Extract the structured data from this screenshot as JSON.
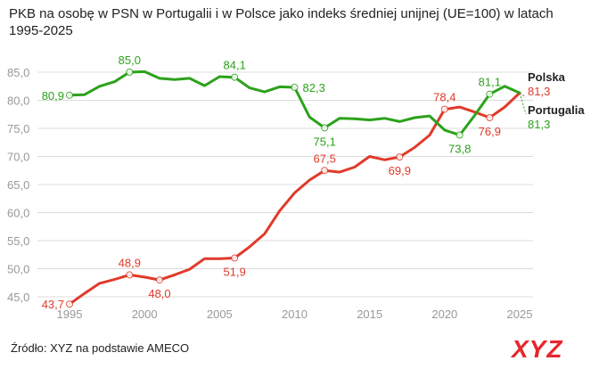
{
  "title": "PKB na osobę w PSN w Portugalii i w Polsce jako indeks średniej unijnej (UE=100) w latach 1995-2025",
  "source": "Źródło: XYZ na podstawie AMECO",
  "logo_text": "XYZ",
  "colors": {
    "polska": "#e03a2a",
    "portugalia": "#2ca21b",
    "grid": "#dcdcdc",
    "axis_text": "#999999",
    "logo": "#e8262c",
    "logo_dark": "#1b1f3a"
  },
  "chart_data": {
    "type": "line",
    "title": "PKB na osobę w PSN w Portugalii i w Polsce jako indeks średniej unijnej (UE=100) w latach 1995-2025",
    "xlabel": "",
    "ylabel": "",
    "xlim": [
      1995,
      2025
    ],
    "ylim": [
      45,
      85
    ],
    "x_ticks": [
      "1995",
      "2000",
      "2005",
      "2010",
      "2015",
      "2020",
      "2025"
    ],
    "y_ticks": [
      "45,0",
      "50,0",
      "55,0",
      "60,0",
      "65,0",
      "70,0",
      "75,0",
      "80,0",
      "85,0"
    ],
    "grid": true,
    "legend": "end-labels",
    "series": [
      {
        "key": "polska",
        "name": "Polska",
        "x": [
          1995,
          1996,
          1997,
          1998,
          1999,
          2000,
          2001,
          2002,
          2003,
          2004,
          2005,
          2006,
          2007,
          2008,
          2009,
          2010,
          2011,
          2012,
          2013,
          2014,
          2015,
          2016,
          2017,
          2018,
          2019,
          2020,
          2021,
          2022,
          2023,
          2024,
          2025
        ],
        "y": [
          43.7,
          45.6,
          47.4,
          48.1,
          48.9,
          48.5,
          48.0,
          48.9,
          49.9,
          51.8,
          51.8,
          51.9,
          53.9,
          56.2,
          60.3,
          63.5,
          65.8,
          67.5,
          67.2,
          68.1,
          70.0,
          69.4,
          69.9,
          71.6,
          73.8,
          78.4,
          78.8,
          77.9,
          76.9,
          78.8,
          81.3
        ]
      },
      {
        "key": "portugalia",
        "name": "Portugalia",
        "x": [
          1995,
          1996,
          1997,
          1998,
          1999,
          2000,
          2001,
          2002,
          2003,
          2004,
          2005,
          2006,
          2007,
          2008,
          2009,
          2010,
          2011,
          2012,
          2013,
          2014,
          2015,
          2016,
          2017,
          2018,
          2019,
          2020,
          2021,
          2022,
          2023,
          2024,
          2025
        ],
        "y": [
          80.9,
          81.0,
          82.5,
          83.3,
          85.0,
          85.1,
          83.9,
          83.7,
          83.9,
          82.6,
          84.2,
          84.1,
          82.2,
          81.5,
          82.4,
          82.3,
          77.0,
          75.1,
          76.8,
          76.7,
          76.5,
          76.8,
          76.2,
          76.9,
          77.2,
          74.7,
          73.8,
          77.3,
          81.1,
          82.5,
          81.3
        ]
      }
    ],
    "annotations": [
      {
        "series": "portugalia",
        "x": 1995,
        "y": 80.9,
        "label": "80,9",
        "pos": "left"
      },
      {
        "series": "portugalia",
        "x": 1999,
        "y": 85.0,
        "label": "85,0",
        "pos": "above"
      },
      {
        "series": "portugalia",
        "x": 2006,
        "y": 84.1,
        "label": "84,1",
        "pos": "above"
      },
      {
        "series": "portugalia",
        "x": 2010,
        "y": 82.3,
        "label": "82,3",
        "pos": "right"
      },
      {
        "series": "portugalia",
        "x": 2012,
        "y": 75.1,
        "label": "75,1",
        "pos": "below"
      },
      {
        "series": "portugalia",
        "x": 2021,
        "y": 73.8,
        "label": "73,8",
        "pos": "below"
      },
      {
        "series": "portugalia",
        "x": 2023,
        "y": 81.1,
        "label": "81,1",
        "pos": "above"
      },
      {
        "series": "polska",
        "x": 1995,
        "y": 43.7,
        "label": "43,7",
        "pos": "left"
      },
      {
        "series": "polska",
        "x": 1999,
        "y": 48.9,
        "label": "48,9",
        "pos": "above"
      },
      {
        "series": "polska",
        "x": 2001,
        "y": 48.0,
        "label": "48,0",
        "pos": "below"
      },
      {
        "series": "polska",
        "x": 2006,
        "y": 51.9,
        "label": "51,9",
        "pos": "below"
      },
      {
        "series": "polska",
        "x": 2012,
        "y": 67.5,
        "label": "67,5",
        "pos": "above"
      },
      {
        "series": "polska",
        "x": 2017,
        "y": 69.9,
        "label": "69,9",
        "pos": "below"
      },
      {
        "series": "polska",
        "x": 2020,
        "y": 78.4,
        "label": "78,4",
        "pos": "above"
      },
      {
        "series": "polska",
        "x": 2023,
        "y": 76.9,
        "label": "76,9",
        "pos": "below"
      }
    ],
    "end_labels": [
      {
        "series": "polska",
        "name": "Polska",
        "value": "81,3"
      },
      {
        "series": "portugalia",
        "name": "Portugalia",
        "value": "81,3"
      }
    ]
  }
}
